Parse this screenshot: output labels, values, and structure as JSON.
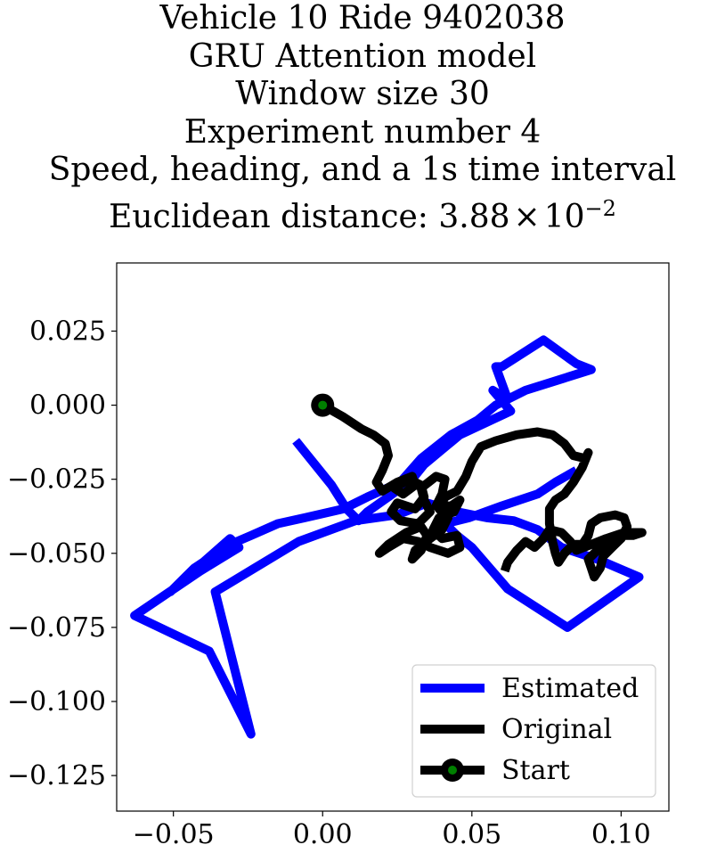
{
  "chart_data": {
    "type": "line",
    "title_lines": [
      "Vehicle 10 Ride 9402038",
      "GRU Attention model",
      "Window size 30",
      "Experiment number 4",
      "Speed, heading, and a 1s time interval"
    ],
    "subtitle_prefix": "Euclidean distance: 3.88",
    "subtitle_times": "×",
    "subtitle_base": "10",
    "subtitle_exponent": "−2",
    "xlabel": "",
    "ylabel": "",
    "xlim": [
      -0.069,
      0.116
    ],
    "ylim": [
      -0.137,
      0.048
    ],
    "x_ticks": [
      -0.05,
      0.0,
      0.05,
      0.1
    ],
    "x_tick_labels": [
      "−0.05",
      "0.00",
      "0.05",
      "0.10"
    ],
    "y_ticks": [
      0.025,
      0.0,
      -0.025,
      -0.05,
      -0.075,
      -0.1,
      -0.125
    ],
    "y_tick_labels": [
      "0.025",
      "0.000",
      "−0.025",
      "−0.050",
      "−0.075",
      "−0.100",
      "−0.125"
    ],
    "grid": false,
    "legend_position": "lower-right",
    "series": [
      {
        "name": "Estimated",
        "color": "#0000ff",
        "points": [
          [
            -0.009,
            -0.012
          ],
          [
            -0.005,
            -0.017
          ],
          [
            0.003,
            -0.027
          ],
          [
            0.008,
            -0.035
          ],
          [
            0.012,
            -0.039
          ],
          [
            0.015,
            -0.036
          ],
          [
            0.022,
            -0.031
          ],
          [
            0.03,
            -0.025
          ],
          [
            0.034,
            -0.02
          ],
          [
            0.04,
            -0.015
          ],
          [
            0.046,
            -0.01
          ],
          [
            0.063,
            -0.002
          ],
          [
            0.057,
            0.005
          ],
          [
            0.062,
            0.002
          ],
          [
            0.058,
            0.013
          ],
          [
            0.06,
            0.013
          ],
          [
            0.074,
            0.022
          ],
          [
            0.085,
            0.014
          ],
          [
            0.09,
            0.012
          ],
          [
            0.068,
            0.005
          ],
          [
            0.058,
            0.0
          ],
          [
            0.052,
            -0.005
          ],
          [
            0.043,
            -0.01
          ],
          [
            0.033,
            -0.018
          ],
          [
            0.026,
            -0.026
          ],
          [
            0.015,
            -0.031
          ],
          [
            0.007,
            -0.035
          ],
          [
            -0.006,
            -0.038
          ],
          [
            -0.015,
            -0.04
          ],
          [
            -0.024,
            -0.044
          ],
          [
            -0.031,
            -0.047
          ],
          [
            -0.037,
            -0.051
          ],
          [
            -0.043,
            -0.055
          ],
          [
            -0.047,
            -0.059
          ],
          [
            -0.051,
            -0.063
          ],
          [
            -0.046,
            -0.058
          ],
          [
            -0.04,
            -0.053
          ],
          [
            -0.031,
            -0.045
          ],
          [
            -0.028,
            -0.048
          ],
          [
            -0.041,
            -0.056
          ],
          [
            -0.063,
            -0.071
          ],
          [
            -0.038,
            -0.083
          ],
          [
            -0.024,
            -0.111
          ],
          [
            -0.036,
            -0.063
          ],
          [
            -0.008,
            -0.046
          ],
          [
            0.011,
            -0.039
          ],
          [
            0.025,
            -0.037
          ],
          [
            0.035,
            -0.033
          ],
          [
            0.045,
            -0.036
          ],
          [
            0.055,
            -0.038
          ],
          [
            0.064,
            -0.039
          ],
          [
            0.072,
            -0.042
          ],
          [
            0.08,
            -0.048
          ],
          [
            0.092,
            -0.052
          ],
          [
            0.106,
            -0.058
          ],
          [
            0.082,
            -0.075
          ],
          [
            0.062,
            -0.062
          ],
          [
            0.05,
            -0.048
          ],
          [
            0.045,
            -0.044
          ],
          [
            0.041,
            -0.04
          ],
          [
            0.049,
            -0.038
          ],
          [
            0.06,
            -0.034
          ],
          [
            0.072,
            -0.03
          ],
          [
            0.078,
            -0.026
          ],
          [
            0.085,
            -0.022
          ]
        ]
      },
      {
        "name": "Original",
        "color": "#000000",
        "points": [
          [
            0.0,
            0.0
          ],
          [
            0.007,
            -0.004
          ],
          [
            0.013,
            -0.008
          ],
          [
            0.017,
            -0.01
          ],
          [
            0.021,
            -0.013
          ],
          [
            0.022,
            -0.017
          ],
          [
            0.02,
            -0.022
          ],
          [
            0.018,
            -0.026
          ],
          [
            0.02,
            -0.029
          ],
          [
            0.025,
            -0.026
          ],
          [
            0.03,
            -0.024
          ],
          [
            0.031,
            -0.027
          ],
          [
            0.027,
            -0.03
          ],
          [
            0.024,
            -0.028
          ],
          [
            0.029,
            -0.025
          ],
          [
            0.033,
            -0.027
          ],
          [
            0.034,
            -0.031
          ],
          [
            0.031,
            -0.035
          ],
          [
            0.025,
            -0.033
          ],
          [
            0.023,
            -0.036
          ],
          [
            0.026,
            -0.039
          ],
          [
            0.032,
            -0.04
          ],
          [
            0.036,
            -0.036
          ],
          [
            0.034,
            -0.032
          ],
          [
            0.033,
            -0.028
          ],
          [
            0.038,
            -0.024
          ],
          [
            0.041,
            -0.025
          ],
          [
            0.04,
            -0.03
          ],
          [
            0.038,
            -0.034
          ],
          [
            0.043,
            -0.034
          ],
          [
            0.046,
            -0.032
          ],
          [
            0.044,
            -0.036
          ],
          [
            0.039,
            -0.038
          ],
          [
            0.037,
            -0.042
          ],
          [
            0.04,
            -0.045
          ],
          [
            0.045,
            -0.044
          ],
          [
            0.046,
            -0.048
          ],
          [
            0.042,
            -0.05
          ],
          [
            0.036,
            -0.048
          ],
          [
            0.032,
            -0.046
          ],
          [
            0.027,
            -0.045
          ],
          [
            0.022,
            -0.048
          ],
          [
            0.019,
            -0.05
          ],
          [
            0.022,
            -0.047
          ],
          [
            0.028,
            -0.043
          ],
          [
            0.033,
            -0.041
          ],
          [
            0.035,
            -0.044
          ],
          [
            0.033,
            -0.049
          ],
          [
            0.03,
            -0.052
          ],
          [
            0.031,
            -0.049
          ],
          [
            0.036,
            -0.045
          ],
          [
            0.04,
            -0.042
          ],
          [
            0.042,
            -0.038
          ],
          [
            0.039,
            -0.035
          ],
          [
            0.041,
            -0.031
          ],
          [
            0.045,
            -0.029
          ],
          [
            0.048,
            -0.024
          ],
          [
            0.05,
            -0.019
          ],
          [
            0.053,
            -0.014
          ],
          [
            0.058,
            -0.012
          ],
          [
            0.065,
            -0.01
          ],
          [
            0.072,
            -0.009
          ],
          [
            0.077,
            -0.01
          ],
          [
            0.081,
            -0.013
          ],
          [
            0.084,
            -0.017
          ],
          [
            0.088,
            -0.018
          ],
          [
            0.089,
            -0.016
          ],
          [
            0.087,
            -0.021
          ],
          [
            0.084,
            -0.026
          ],
          [
            0.081,
            -0.03
          ],
          [
            0.078,
            -0.032
          ],
          [
            0.076,
            -0.035
          ],
          [
            0.076,
            -0.04
          ],
          [
            0.077,
            -0.046
          ],
          [
            0.078,
            -0.05
          ],
          [
            0.079,
            -0.053
          ],
          [
            0.081,
            -0.05
          ],
          [
            0.084,
            -0.047
          ],
          [
            0.087,
            -0.047
          ],
          [
            0.089,
            -0.044
          ],
          [
            0.09,
            -0.04
          ],
          [
            0.093,
            -0.038
          ],
          [
            0.098,
            -0.037
          ],
          [
            0.101,
            -0.038
          ],
          [
            0.102,
            -0.041
          ],
          [
            0.1,
            -0.045
          ],
          [
            0.097,
            -0.048
          ],
          [
            0.094,
            -0.051
          ],
          [
            0.093,
            -0.055
          ],
          [
            0.091,
            -0.058
          ],
          [
            0.09,
            -0.055
          ],
          [
            0.089,
            -0.052
          ],
          [
            0.092,
            -0.049
          ],
          [
            0.096,
            -0.046
          ],
          [
            0.1,
            -0.044
          ],
          [
            0.104,
            -0.044
          ],
          [
            0.107,
            -0.043
          ],
          [
            0.101,
            -0.043
          ],
          [
            0.095,
            -0.045
          ],
          [
            0.09,
            -0.047
          ],
          [
            0.085,
            -0.049
          ],
          [
            0.083,
            -0.046
          ],
          [
            0.08,
            -0.043
          ],
          [
            0.076,
            -0.042
          ],
          [
            0.074,
            -0.045
          ],
          [
            0.071,
            -0.048
          ],
          [
            0.068,
            -0.046
          ],
          [
            0.065,
            -0.049
          ],
          [
            0.062,
            -0.053
          ],
          [
            0.061,
            -0.056
          ]
        ]
      }
    ],
    "start_point": {
      "name": "Start",
      "x": 0.0,
      "y": 0.0,
      "marker_face_color": "#008000",
      "marker_edge_color": "#000000"
    },
    "legend": [
      "Estimated",
      "Original",
      "Start"
    ]
  }
}
